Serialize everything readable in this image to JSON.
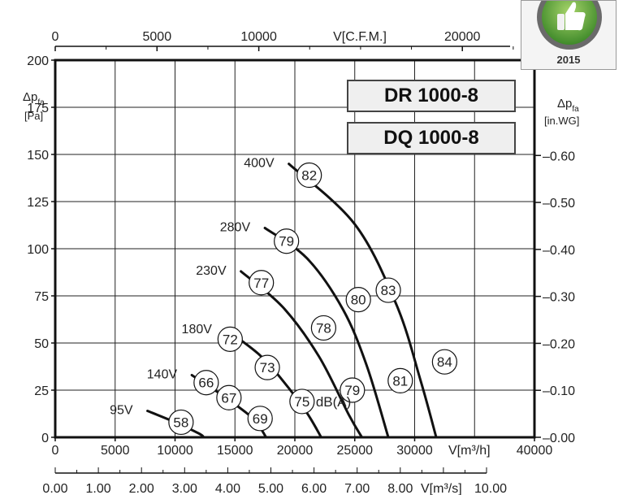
{
  "models": [
    "DR 1000-8",
    "DQ 1000-8"
  ],
  "badge": {
    "year": "2015"
  },
  "chart_data": {
    "type": "line",
    "title": "",
    "grid": true,
    "axes": {
      "y_left": {
        "label_main": "Δp",
        "label_sub": "fa",
        "unit": "[Pa]",
        "ticks": [
          0,
          25,
          50,
          75,
          100,
          125,
          150,
          175,
          200
        ],
        "range": [
          0,
          200
        ]
      },
      "y_right": {
        "label_main": "Δp",
        "label_sub": "fa",
        "unit": "[in.WG]",
        "ticks": [
          "0.00",
          "0.10",
          "0.20",
          "0.30",
          "0.40",
          "0.50",
          "0.60"
        ]
      },
      "x_bottom": {
        "label": "V[m³/h]",
        "ticks": [
          0,
          5000,
          10000,
          15000,
          20000,
          25000,
          30000,
          40000
        ],
        "range": [
          0,
          40000
        ]
      },
      "x_top": {
        "label": "V[C.F.M.]",
        "ticks": [
          0,
          5000,
          10000,
          20000
        ]
      },
      "x_bottom2": {
        "label": "V[m³/s]",
        "ticks": [
          "0.00",
          "1.00",
          "2.00",
          "3.00",
          "4.00",
          "5.00",
          "6.00",
          "7.00",
          "8.00",
          "10.00"
        ]
      }
    },
    "unit_label": "dB(A)",
    "series": [
      {
        "name": "400V",
        "points": [
          [
            19500,
            145
          ],
          [
            25000,
            113
          ],
          [
            28500,
            70
          ],
          [
            30500,
            30
          ],
          [
            31800,
            0
          ]
        ],
        "db_markers": [
          [
            21200,
            139,
            "82"
          ],
          [
            27800,
            78,
            "83"
          ],
          [
            32500,
            40,
            "84"
          ]
        ]
      },
      {
        "name": "280V",
        "points": [
          [
            17500,
            111
          ],
          [
            21000,
            95
          ],
          [
            24000,
            68
          ],
          [
            26000,
            38
          ],
          [
            27800,
            0
          ]
        ],
        "db_markers": [
          [
            19300,
            104,
            "79"
          ],
          [
            25300,
            73,
            "80"
          ],
          [
            28800,
            30,
            "81"
          ]
        ]
      },
      {
        "name": "230V",
        "points": [
          [
            15500,
            88
          ],
          [
            19000,
            69
          ],
          [
            22000,
            43
          ],
          [
            24500,
            12
          ],
          [
            25600,
            0
          ]
        ],
        "db_markers": [
          [
            17200,
            82,
            "77"
          ],
          [
            22400,
            58,
            "78"
          ],
          [
            24800,
            25,
            "79"
          ]
        ]
      },
      {
        "name": "180V",
        "points": [
          [
            14300,
            57
          ],
          [
            17000,
            44
          ],
          [
            19000,
            30
          ],
          [
            21000,
            13
          ],
          [
            22200,
            0
          ]
        ],
        "db_markers": [
          [
            14600,
            52,
            "72"
          ],
          [
            17700,
            37,
            "73"
          ],
          [
            20600,
            19,
            "75"
          ]
        ]
      },
      {
        "name": "140V",
        "points": [
          [
            11400,
            33
          ],
          [
            14000,
            22
          ],
          [
            16500,
            10
          ],
          [
            17600,
            0
          ]
        ],
        "db_markers": [
          [
            12600,
            29,
            "66"
          ],
          [
            14500,
            21,
            "67"
          ],
          [
            17100,
            10,
            "69"
          ]
        ]
      },
      {
        "name": "95V",
        "points": [
          [
            7700,
            14
          ],
          [
            10000,
            8
          ],
          [
            12000,
            2
          ],
          [
            12400,
            0
          ]
        ],
        "db_markers": [
          [
            10500,
            8,
            "58"
          ]
        ]
      }
    ]
  }
}
